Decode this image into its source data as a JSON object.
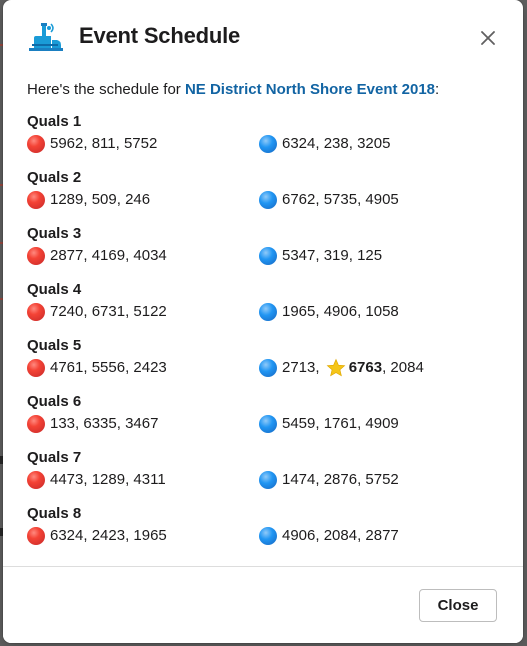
{
  "modal": {
    "title": "Event Schedule",
    "close_icon": "close-icon",
    "logo_icon": "app-logo-icon"
  },
  "intro": {
    "prefix": "Here's the schedule for ",
    "event_name": "NE District North Shore Event 2018",
    "suffix": ":"
  },
  "matches": [
    {
      "title": "Quals 1",
      "red": "5962, 811, 5752",
      "blue": "6324, 238, 3205"
    },
    {
      "title": "Quals 2",
      "red": "1289, 509, 246",
      "blue": "6762, 5735, 4905"
    },
    {
      "title": "Quals 3",
      "red": "2877, 4169, 4034",
      "blue": "5347, 319, 125"
    },
    {
      "title": "Quals 4",
      "red": "7240, 6731, 5122",
      "blue": "1965, 4906, 1058"
    },
    {
      "title": "Quals 5",
      "red": "4761, 5556, 2423",
      "blue_parts": {
        "before": "2713, ",
        "starred": "6763",
        "after": ", 2084"
      }
    },
    {
      "title": "Quals 6",
      "red": "133, 6335, 3467",
      "blue": "5459, 1761, 4909"
    },
    {
      "title": "Quals 7",
      "red": "4473, 1289, 4311",
      "blue": "1474, 2876, 5752"
    },
    {
      "title": "Quals 8",
      "red": "6324, 2423, 1965",
      "blue": "4906, 2084, 2877"
    }
  ],
  "footer": {
    "close_label": "Close"
  },
  "colors": {
    "red_alliance": "#e53935",
    "blue_alliance": "#1e88e5",
    "link": "#1264a3",
    "star": "#f5c518"
  }
}
